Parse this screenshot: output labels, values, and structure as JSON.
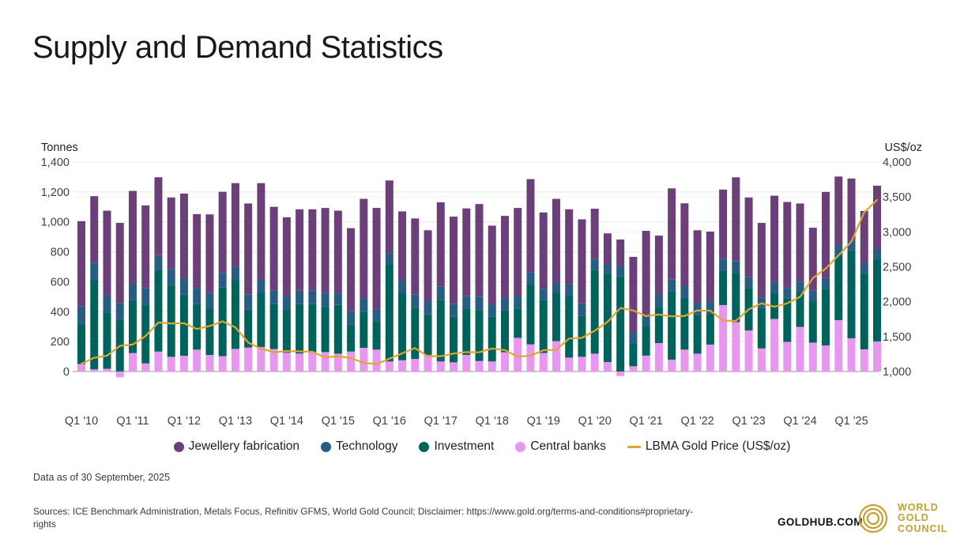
{
  "header": {
    "title": "Supply and Demand Statistics"
  },
  "footer": {
    "data_as_of": "Data as of 30 September, 2025",
    "sources": "Sources: ICE Benchmark Administration, Metals Focus, Refinitiv GFMS, World Gold Council; Disclaimer: https://www.gold.org/terms-and-conditions#proprietary-rights"
  },
  "branding": {
    "goldhub": "GOLDHUB.COM",
    "logo_lines": [
      "WORLD",
      "GOLD",
      "COUNCIL"
    ],
    "logo_color": "#C7A033"
  },
  "colors": {
    "jewellery": "#6B3F78",
    "technology": "#285D83",
    "investment": "#00635B",
    "central_banks": "#E897F0",
    "gold_line": "#DFA62F",
    "gridline": "#e8e8e8",
    "gridline_right": "#f1f1f1",
    "axis_line": "#cccccc",
    "tick_text": "#3f3f3f"
  },
  "chart_data": {
    "type": "bar",
    "subtype": "stacked-column-with-line",
    "categories": [
      "Q1 '10",
      "Q2 '10",
      "Q3 '10",
      "Q4 '10",
      "Q1 '11",
      "Q2 '11",
      "Q3 '11",
      "Q4 '11",
      "Q1 '12",
      "Q2 '12",
      "Q3 '12",
      "Q4 '12",
      "Q1 '13",
      "Q2 '13",
      "Q3 '13",
      "Q4 '13",
      "Q1 '14",
      "Q2 '14",
      "Q3 '14",
      "Q4 '14",
      "Q1 '15",
      "Q2 '15",
      "Q3 '15",
      "Q4 '15",
      "Q1 '16",
      "Q2 '16",
      "Q3 '16",
      "Q4 '16",
      "Q1 '17",
      "Q2 '17",
      "Q3 '17",
      "Q4 '17",
      "Q1 '18",
      "Q2 '18",
      "Q3 '18",
      "Q4 '18",
      "Q1 '19",
      "Q2 '19",
      "Q3 '19",
      "Q4 '19",
      "Q1 '20",
      "Q2 '20",
      "Q3 '20",
      "Q4 '20",
      "Q1 '21",
      "Q2 '21",
      "Q3 '21",
      "Q4 '21",
      "Q1 '22",
      "Q2 '22",
      "Q3 '22",
      "Q4 '22",
      "Q1 '23",
      "Q2 '23",
      "Q3 '23",
      "Q4 '23",
      "Q1 '24",
      "Q2 '24",
      "Q3 '24",
      "Q4 '24",
      "Q1 '25",
      "Q2 '25",
      "Q3 '25"
    ],
    "series": [
      {
        "name": "Jewellery fabrication",
        "color": "#6B3F78",
        "values": [
          570,
          444,
          570,
          535,
          618,
          554,
          520,
          478,
          565,
          494,
          525,
          544,
          561,
          609,
          646,
          561,
          526,
          544,
          544,
          568,
          555,
          555,
          663,
          676,
          488,
          460,
          509,
          474,
          564,
          582,
          584,
          618,
          526,
          549,
          588,
          625,
          509,
          565,
          500,
          561,
          337,
          210,
          177,
          502,
          554,
          398,
          610,
          548,
          487,
          467,
          464,
          560,
          530,
          497,
          574,
          575,
          522,
          421,
          576,
          458,
          418,
          349,
          423
        ]
      },
      {
        "name": "Technology",
        "color": "#285D83",
        "values": [
          114,
          118,
          114,
          114,
          110,
          112,
          97,
          110,
          110,
          105,
          105,
          96,
          88,
          100,
          90,
          90,
          90,
          90,
          90,
          95,
          75,
          87,
          91,
          87,
          73,
          87,
          88,
          88,
          88,
          88,
          84,
          91,
          81,
          82,
          84,
          80,
          75,
          66,
          79,
          82,
          71,
          60,
          70,
          79,
          80,
          80,
          80,
          80,
          78,
          78,
          78,
          78,
          75,
          70,
          75,
          70,
          70,
          70,
          70,
          68,
          69,
          74,
          69
        ]
      },
      {
        "name": "Investment",
        "color": "#00635B",
        "values": [
          272,
          596,
          373,
          344,
          356,
          390,
          548,
          477,
          409,
          307,
          310,
          459,
          459,
          254,
          360,
          300,
          290,
          330,
          320,
          300,
          326,
          183,
          242,
          184,
          649,
          448,
          342,
          272,
          412,
          304,
          311,
          340,
          301,
          281,
          196,
          400,
          356,
          320,
          412,
          276,
          561,
          590,
          635,
          150,
          200,
          240,
          455,
          350,
          260,
          210,
          230,
          330,
          284,
          272,
          175,
          290,
          233,
          277,
          380,
          434,
          581,
          502,
          549
        ]
      },
      {
        "name": "Central banks",
        "color": "#E897F0",
        "values": [
          49,
          14,
          18,
          -39,
          123,
          54,
          133,
          98,
          105,
          146,
          110,
          102,
          151,
          160,
          163,
          150,
          125,
          120,
          130,
          130,
          119,
          133,
          158,
          146,
          67,
          75,
          84,
          110,
          67,
          61,
          111,
          70,
          67,
          128,
          225,
          181,
          123,
          203,
          93,
          98,
          119,
          63,
          -30,
          35,
          106,
          190,
          79,
          146,
          119,
          180,
          444,
          330,
          274,
          154,
          351,
          198,
          298,
          193,
          174,
          343,
          222,
          148,
          201
        ]
      }
    ],
    "stack_bottom_to_top": [
      "Central banks",
      "Investment",
      "Technology",
      "Jewellery fabrication"
    ],
    "line_series": {
      "name": "LBMA Gold Price (US$/oz)",
      "color": "#DFA62F",
      "values": [
        1110,
        1196,
        1227,
        1367,
        1386,
        1506,
        1702,
        1688,
        1691,
        1609,
        1652,
        1717,
        1631,
        1415,
        1326,
        1276,
        1293,
        1288,
        1282,
        1201,
        1218,
        1192,
        1124,
        1106,
        1183,
        1260,
        1335,
        1218,
        1219,
        1257,
        1278,
        1275,
        1329,
        1306,
        1213,
        1226,
        1304,
        1309,
        1472,
        1481,
        1583,
        1711,
        1909,
        1874,
        1794,
        1816,
        1790,
        1795,
        1874,
        1871,
        1729,
        1725,
        1890,
        1976,
        1928,
        1976,
        2070,
        2338,
        2474,
        2664,
        2860,
        3280,
        3457
      ]
    },
    "left_axis": {
      "label": "Tonnes",
      "min": 0,
      "max": 1400,
      "tick_interval": 200,
      "tick_labels": [
        "0",
        "200",
        "400",
        "600",
        "800",
        "1,000",
        "1,200",
        "1,400"
      ]
    },
    "right_axis": {
      "label": "US$/oz",
      "min": 1000,
      "max": 4000,
      "tick_interval": 500,
      "tick_labels": [
        "1,000",
        "1,500",
        "2,000",
        "2,500",
        "3,000",
        "3,500",
        "4,000"
      ]
    },
    "x_tick_labels": [
      "Q1 '10",
      "Q1 '11",
      "Q1 '12",
      "Q1 '13",
      "Q1 '14",
      "Q1 '15",
      "Q1 '16",
      "Q1 '17",
      "Q1 '18",
      "Q1 '19",
      "Q1 '20",
      "Q1 '21",
      "Q1 '22",
      "Q1 '23",
      "Q1 '24",
      "Q1 '25"
    ],
    "grid": true,
    "legend_position": "bottom"
  }
}
